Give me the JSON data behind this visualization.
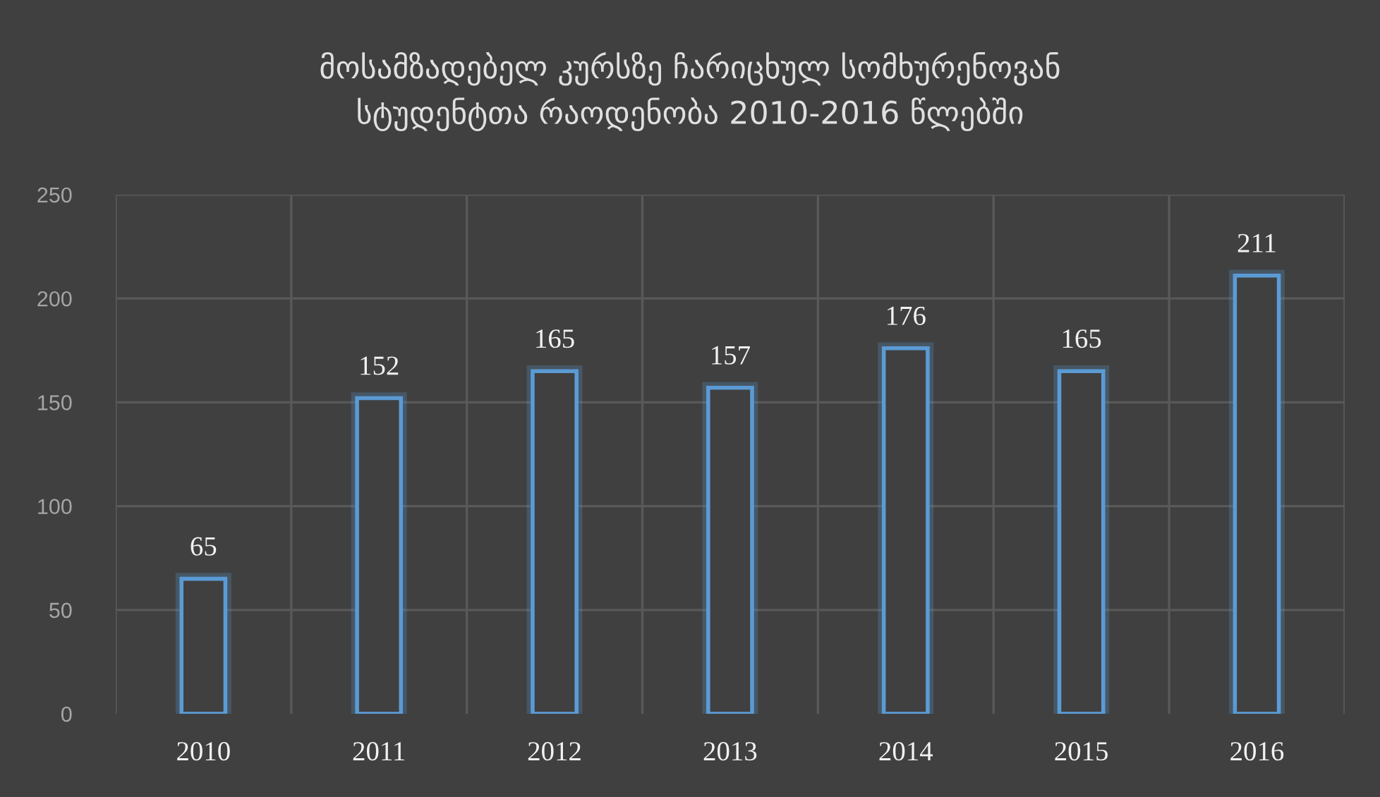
{
  "chart_data": {
    "type": "bar",
    "title": "მოსამზადებელ კურსზე ჩარიცხულ სომხურენოვან\nსტუდენტთა რაოდენობა 2010-2016 წლებში",
    "categories": [
      "2010",
      "2011",
      "2012",
      "2013",
      "2014",
      "2015",
      "2016"
    ],
    "values": [
      65,
      152,
      165,
      157,
      176,
      165,
      211
    ],
    "color": "#5b9bd5",
    "ylim": [
      0,
      250
    ],
    "yticks": [
      0,
      50,
      100,
      150,
      200,
      250
    ],
    "grid": true,
    "data_labels": true
  }
}
